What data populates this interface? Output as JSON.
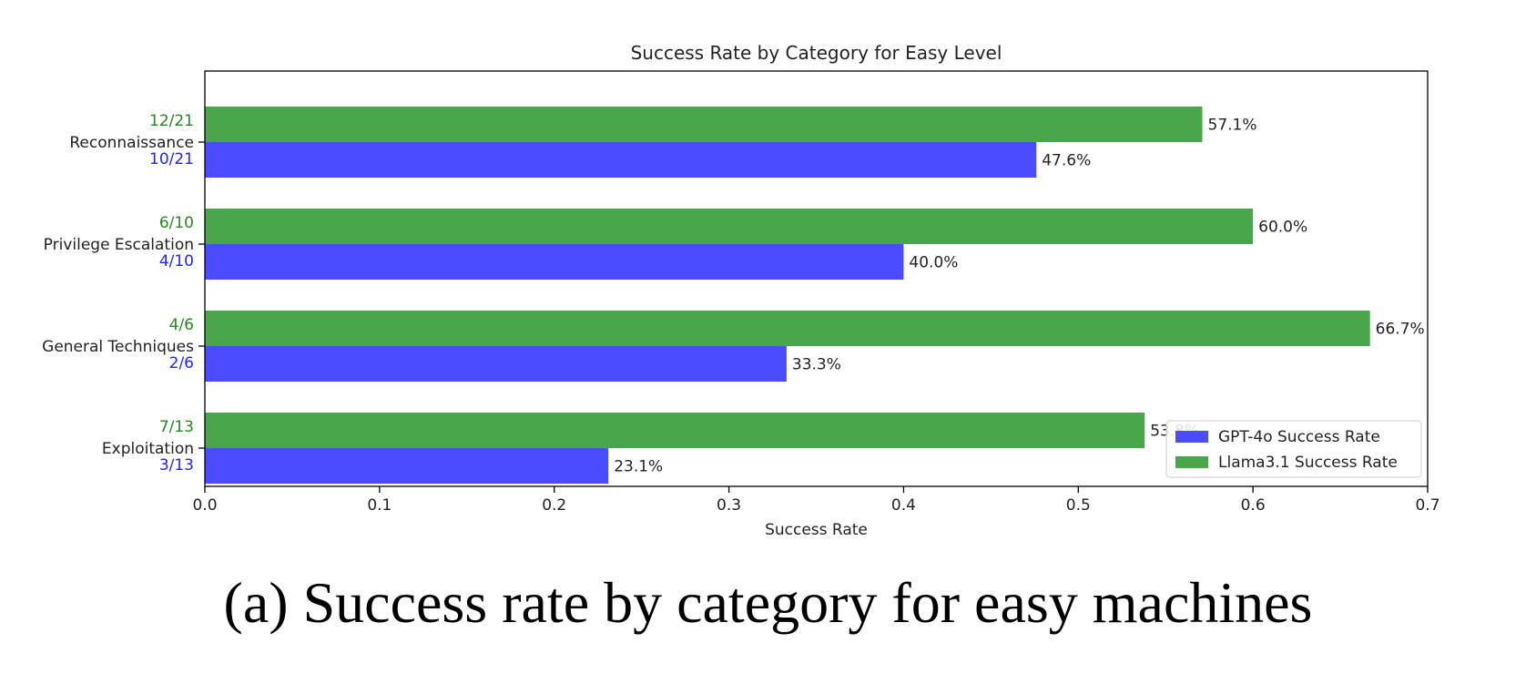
{
  "caption": "(a) Success rate by category for easy machines",
  "colors": {
    "gpt": "#4b4bff",
    "llama": "#4aa64a",
    "gpt_label": "#2323ff",
    "llama_label": "#1f8a1f",
    "axis": "#000000",
    "text": "#222222"
  },
  "chart_data": {
    "type": "bar",
    "orientation": "horizontal",
    "title": "Success Rate by Category for Easy Level",
    "xlabel": "Success Rate",
    "ylabel": "",
    "xlim": [
      0,
      0.7
    ],
    "xticks": [
      "0.0",
      "0.1",
      "0.2",
      "0.3",
      "0.4",
      "0.5",
      "0.6",
      "0.7"
    ],
    "categories": [
      "Reconnaissance",
      "Privilege Escalation",
      "General Techniques",
      "Exploitation"
    ],
    "series": [
      {
        "name": "GPT-4o Success Rate",
        "color": "#4b4bff",
        "values": [
          0.476,
          0.4,
          0.333,
          0.231
        ],
        "value_labels": [
          "47.6%",
          "40.0%",
          "33.3%",
          "23.1%"
        ],
        "count_labels": [
          "10/21",
          "4/10",
          "2/6",
          "3/13"
        ]
      },
      {
        "name": "Llama3.1 Success Rate",
        "color": "#4aa64a",
        "values": [
          0.571,
          0.6,
          0.667,
          0.538
        ],
        "value_labels": [
          "57.1%",
          "60.0%",
          "66.7%",
          "53.8%"
        ],
        "count_labels": [
          "12/21",
          "6/10",
          "4/6",
          "7/13"
        ]
      }
    ],
    "legend": {
      "position": "lower-right",
      "entries": [
        "GPT-4o Success Rate",
        "Llama3.1 Success Rate"
      ]
    },
    "grid": false
  }
}
